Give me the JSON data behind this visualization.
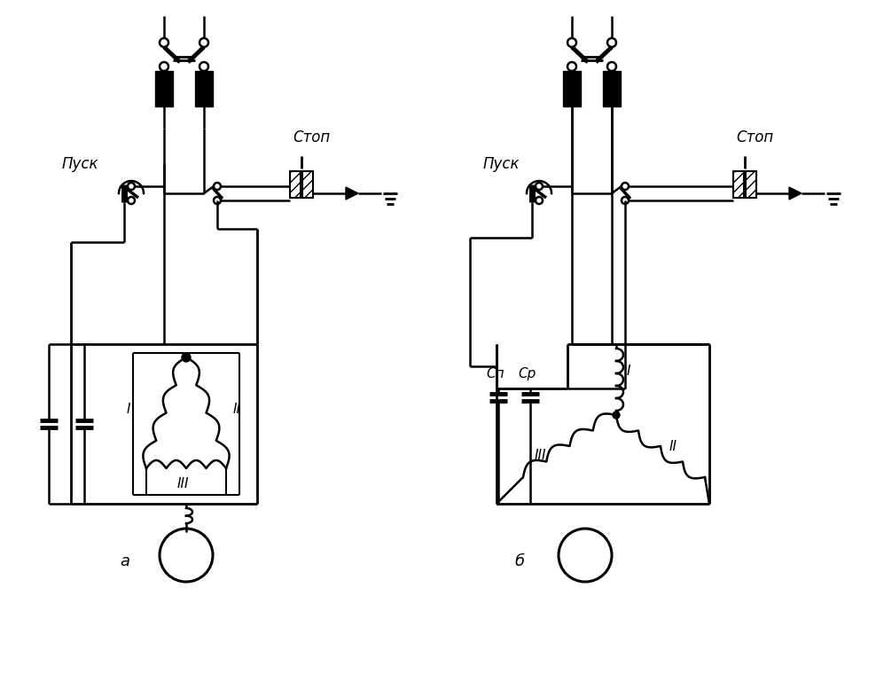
{
  "bg_color": "#ffffff",
  "line_color": "#000000",
  "title_a": "а",
  "title_b": "б",
  "label_pusk_a": "Пуск",
  "label_stop_a": "Стоп",
  "label_pusk_b": "Пуск",
  "label_stop_b": "Стоп",
  "label_I": "I",
  "label_II": "II",
  "label_III": "III",
  "label_Cn": "Сп",
  "label_Cr": "Ср",
  "figsize": [
    9.88,
    7.78
  ],
  "dpi": 100
}
